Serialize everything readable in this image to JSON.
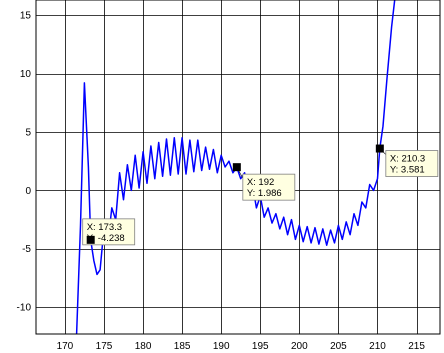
{
  "chart_data": {
    "type": "line",
    "title": "",
    "xlabel": "",
    "ylabel": "",
    "xlim": [
      166.3,
      218
    ],
    "ylim": [
      -12.3,
      16.3
    ],
    "xticks": [
      170,
      175,
      180,
      185,
      190,
      195,
      200,
      205,
      210,
      215
    ],
    "yticks": [
      -10,
      -5,
      0,
      5,
      10,
      15
    ],
    "grid": true,
    "line_color": "#0000ff",
    "series": [
      {
        "x": [
          171.5,
          172.0,
          172.5,
          173.0,
          173.3,
          173.7,
          174.1,
          174.5,
          175.0,
          175.5,
          176.0,
          176.5,
          177.0,
          177.5,
          178.0,
          178.5,
          179.0,
          179.5,
          180.0,
          180.5,
          181.0,
          181.5,
          182.0,
          182.5,
          183.0,
          183.5,
          184.0,
          184.5,
          185.0,
          185.5,
          186.0,
          186.5,
          187.0,
          187.5,
          188.0,
          188.5,
          189.0,
          189.5,
          190.0,
          190.5,
          191.0,
          191.5,
          192.0,
          192.5,
          193.0,
          193.5,
          194.0,
          194.5,
          195.0,
          195.5,
          196.0,
          196.5,
          197.0,
          197.5,
          198.0,
          198.5,
          199.0,
          199.5,
          200.0,
          200.5,
          201.0,
          201.5,
          202.0,
          202.5,
          203.0,
          203.5,
          204.0,
          204.5,
          205.0,
          205.5,
          206.0,
          206.5,
          207.0,
          207.5,
          208.0,
          208.5,
          209.0,
          209.5,
          210.0,
          210.3,
          210.7,
          211.2,
          211.8,
          212.2
        ],
        "y": [
          -12.3,
          -3.0,
          9.2,
          2.0,
          -4.238,
          -6.0,
          -7.2,
          -6.8,
          -3.2,
          -4.5,
          -1.5,
          -2.5,
          1.5,
          -0.8,
          2.2,
          0.0,
          3.0,
          0.2,
          3.3,
          0.6,
          3.8,
          1.0,
          4.1,
          1.2,
          4.4,
          1.3,
          4.5,
          1.4,
          4.5,
          1.4,
          4.3,
          1.6,
          4.3,
          1.7,
          3.7,
          1.8,
          3.5,
          1.5,
          3.0,
          2.0,
          2.5,
          1.5,
          1.986,
          1.0,
          1.5,
          -0.5,
          0.5,
          -1.5,
          -0.5,
          -2.3,
          -1.5,
          -2.8,
          -2.0,
          -3.3,
          -2.3,
          -3.8,
          -2.5,
          -4.2,
          -3.0,
          -4.4,
          -3.1,
          -4.5,
          -3.2,
          -4.6,
          -3.3,
          -4.7,
          -3.4,
          -4.5,
          -3.0,
          -4.2,
          -2.7,
          -3.8,
          -2.0,
          -3.0,
          -1.0,
          -1.5,
          0.5,
          0.0,
          1.0,
          3.581,
          5.5,
          9.5,
          14.0,
          16.3
        ]
      }
    ],
    "datatips": [
      {
        "x_label": "X: 173.3",
        "y_label": "Y: -4.238",
        "x": 173.3,
        "y": -4.238,
        "side": "below-right"
      },
      {
        "x_label": "X: 192",
        "y_label": "Y: 1.986",
        "x": 192,
        "y": 1.986,
        "side": "below-right"
      },
      {
        "x_label": "X: 210.3",
        "y_label": "Y: 3.581",
        "x": 210.3,
        "y": 3.581,
        "side": "right"
      }
    ]
  }
}
